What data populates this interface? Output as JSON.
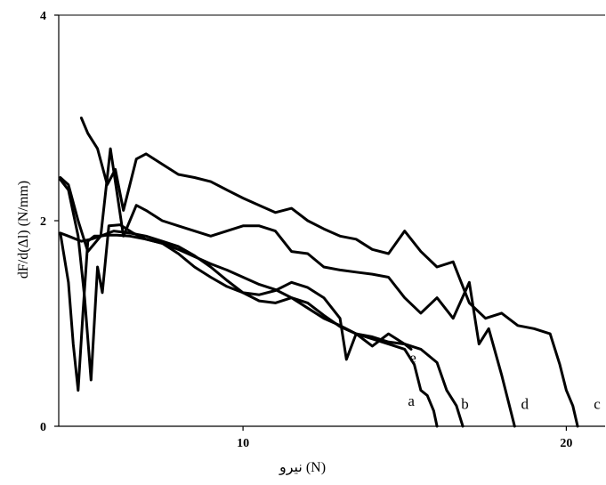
{
  "chart_data": {
    "type": "line",
    "title": "",
    "xlabel": "نیرو (N)",
    "ylabel": "dF/d(Δl) (N/mm)",
    "xlim": [
      4.3,
      21.2
    ],
    "ylim": [
      0,
      4
    ],
    "x_ticks": [
      {
        "value": 10,
        "label": "10"
      },
      {
        "value": 20,
        "label": "20"
      }
    ],
    "y_ticks": [
      {
        "value": 0,
        "label": "0"
      },
      {
        "value": 2,
        "label": "2"
      },
      {
        "value": 4,
        "label": "4"
      }
    ],
    "grid": false,
    "legend": "none",
    "series": [
      {
        "label": "a",
        "label_at": [
          15.1,
          0.2
        ],
        "x": [
          4.35,
          4.6,
          4.75,
          4.9,
          5.05,
          5.2,
          5.4,
          5.6,
          5.8,
          6.1,
          6.5,
          7,
          7.5,
          8,
          8.5,
          9,
          9.5,
          10,
          10.5,
          11,
          11.5,
          12,
          12.5,
          13,
          13.5,
          14,
          14.5,
          15,
          15.3,
          15.5,
          15.7,
          15.9,
          16.0
        ],
        "y": [
          1.88,
          1.4,
          0.8,
          0.35,
          1.1,
          1.8,
          1.85,
          1.85,
          1.86,
          1.86,
          1.85,
          1.82,
          1.78,
          1.72,
          1.65,
          1.58,
          1.52,
          1.45,
          1.38,
          1.33,
          1.25,
          1.15,
          1.05,
          0.98,
          0.9,
          0.85,
          0.8,
          0.75,
          0.6,
          0.35,
          0.3,
          0.15,
          0.0
        ]
      },
      {
        "label": "b",
        "label_at": [
          16.75,
          0.17
        ],
        "x": [
          4.35,
          4.6,
          4.9,
          5.1,
          5.3,
          5.5,
          5.65,
          5.85,
          6.2,
          6.6,
          7,
          7.5,
          8,
          8.5,
          9,
          9.5,
          10,
          10.5,
          11,
          11.5,
          12,
          12.5,
          13,
          13.2,
          13.5,
          14,
          14.5,
          15,
          15.5,
          16,
          16.3,
          16.6,
          16.8
        ],
        "y": [
          2.4,
          2.3,
          1.85,
          1.25,
          0.45,
          1.55,
          1.3,
          1.95,
          1.96,
          1.88,
          1.82,
          1.78,
          1.68,
          1.55,
          1.45,
          1.36,
          1.3,
          1.28,
          1.32,
          1.4,
          1.35,
          1.25,
          1.05,
          0.65,
          0.9,
          0.78,
          0.9,
          0.8,
          0.75,
          0.62,
          0.35,
          0.2,
          0.0
        ]
      },
      {
        "label": "c",
        "label_at": [
          20.85,
          0.17
        ],
        "x": [
          5.0,
          5.2,
          5.5,
          5.8,
          6.05,
          6.3,
          6.7,
          7.0,
          7.5,
          8,
          8.5,
          9,
          9.5,
          10,
          10.5,
          11,
          11.5,
          12,
          12.5,
          13,
          13.5,
          14,
          14.5,
          15,
          15.5,
          16,
          16.5,
          17,
          17.5,
          18,
          18.5,
          19,
          19.5,
          19.8,
          20.0,
          20.2,
          20.35
        ],
        "y": [
          3.0,
          2.85,
          2.7,
          2.35,
          2.5,
          2.1,
          2.6,
          2.65,
          2.55,
          2.45,
          2.42,
          2.38,
          2.3,
          2.22,
          2.15,
          2.08,
          2.12,
          2.0,
          1.92,
          1.85,
          1.82,
          1.72,
          1.68,
          1.9,
          1.7,
          1.55,
          1.6,
          1.2,
          1.05,
          1.1,
          0.98,
          0.95,
          0.9,
          0.6,
          0.35,
          0.2,
          0.0
        ]
      },
      {
        "label": "d",
        "label_at": [
          18.6,
          0.17
        ],
        "x": [
          4.35,
          4.6,
          4.9,
          5.2,
          5.6,
          5.9,
          6.3,
          6.7,
          7.0,
          7.5,
          8,
          8.5,
          9,
          9.5,
          10,
          10.5,
          11,
          11.5,
          12,
          12.5,
          13,
          13.5,
          14,
          14.5,
          15,
          15.5,
          16,
          16.5,
          17,
          17.3,
          17.6,
          18.0,
          18.2,
          18.4
        ],
        "y": [
          2.42,
          2.35,
          2.0,
          1.7,
          1.85,
          2.7,
          1.85,
          2.15,
          2.1,
          2.0,
          1.95,
          1.9,
          1.85,
          1.9,
          1.95,
          1.95,
          1.9,
          1.7,
          1.68,
          1.55,
          1.52,
          1.5,
          1.48,
          1.45,
          1.25,
          1.1,
          1.25,
          1.05,
          1.4,
          0.8,
          0.95,
          0.5,
          0.25,
          0.0
        ]
      },
      {
        "label": "e",
        "label_at": [
          15.15,
          0.62
        ],
        "x": [
          4.35,
          4.6,
          5.0,
          5.3,
          5.6,
          6.0,
          6.5,
          7.0,
          7.5,
          8,
          8.5,
          9,
          9.5,
          10,
          10.5,
          11,
          11.5,
          12,
          12.5,
          13,
          13.5,
          14,
          14.5,
          15,
          15.2
        ],
        "y": [
          1.88,
          1.85,
          1.8,
          1.82,
          1.85,
          1.9,
          1.88,
          1.85,
          1.8,
          1.75,
          1.66,
          1.55,
          1.42,
          1.3,
          1.22,
          1.2,
          1.25,
          1.2,
          1.08,
          0.97,
          0.9,
          0.87,
          0.82,
          0.8,
          0.75
        ]
      }
    ]
  }
}
